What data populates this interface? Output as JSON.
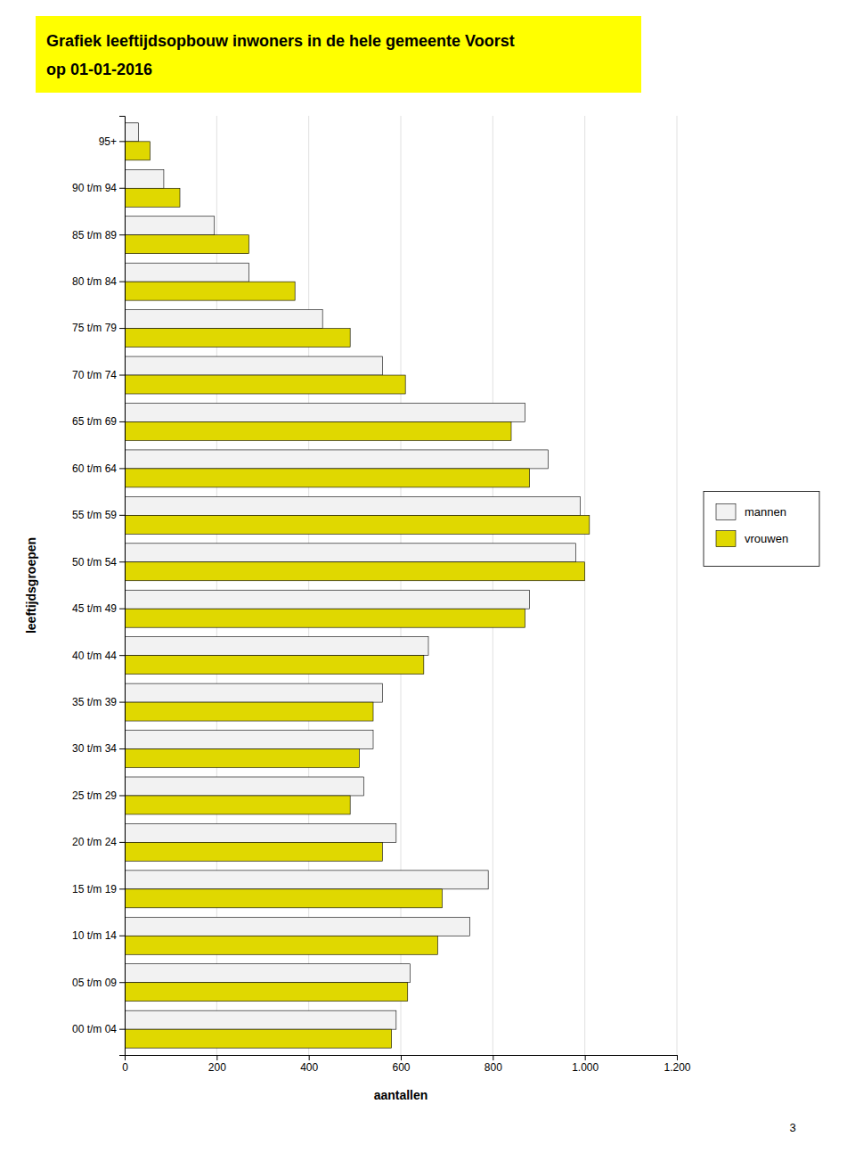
{
  "chart_data": {
    "type": "bar",
    "orientation": "horizontal",
    "title": "Grafiek leeftijdsopbouw inwoners in de hele gemeente Voorst",
    "subtitle": "op 01-01-2016",
    "x_label": "aantallen",
    "y_label": "leeftijdsgroepen",
    "categories": [
      "95+",
      "90 t/m 94",
      "85 t/m 89",
      "80 t/m 84",
      "75 t/m 79",
      "70 t/m 74",
      "65 t/m 69",
      "60 t/m 64",
      "55 t/m 59",
      "50 t/m 54",
      "45 t/m 49",
      "40 t/m 44",
      "35 t/m 39",
      "30 t/m 34",
      "25 t/m 29",
      "20 t/m 24",
      "15 t/m 19",
      "10 t/m 14",
      "05 t/m 09",
      "00 t/m 04"
    ],
    "series": [
      {
        "name": "mannen",
        "color": "#F2F2F2",
        "values": [
          30,
          85,
          195,
          270,
          430,
          560,
          870,
          920,
          990,
          980,
          880,
          660,
          560,
          540,
          520,
          590,
          790,
          750,
          620,
          590
        ]
      },
      {
        "name": "vrouwen",
        "color": "#E0D800",
        "values": [
          55,
          120,
          270,
          370,
          490,
          610,
          840,
          880,
          1010,
          1000,
          870,
          650,
          540,
          510,
          490,
          560,
          690,
          680,
          615,
          580
        ]
      }
    ],
    "xlim": [
      0,
      1200
    ],
    "xticks": [
      0,
      200,
      400,
      600,
      800,
      {
        "value": 1000,
        "label": "1.000"
      },
      {
        "value": 1200,
        "label": "1.200"
      }
    ],
    "grid": true,
    "legend": "right",
    "annotations": [
      "3"
    ]
  }
}
